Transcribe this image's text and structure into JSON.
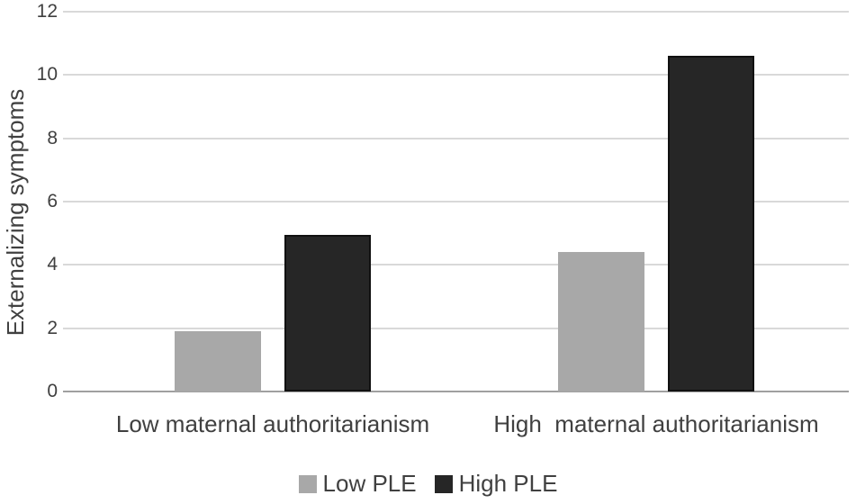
{
  "figure": {
    "background": "#ffffff"
  },
  "chart_data": {
    "type": "bar",
    "title": "",
    "xlabel": "",
    "ylabel": "Externalizing symptoms",
    "ylim": [
      0,
      12
    ],
    "yticks": [
      0,
      2,
      4,
      6,
      8,
      10,
      12
    ],
    "grid": true,
    "legend_position": "bottom",
    "categories": [
      "Low maternal authoritarianism",
      "High  maternal authoritarianism"
    ],
    "series": [
      {
        "name": "Low PLE",
        "color": "#a8a8a8",
        "values": [
          1.9,
          4.4
        ]
      },
      {
        "name": "High PLE",
        "color": "#262626",
        "values": [
          4.95,
          10.6
        ]
      }
    ]
  },
  "colors": {
    "gridline": "#d9d9d9",
    "axis_line": "#a0a0a0",
    "text": "#404040",
    "high_ple_border": "#111111"
  }
}
